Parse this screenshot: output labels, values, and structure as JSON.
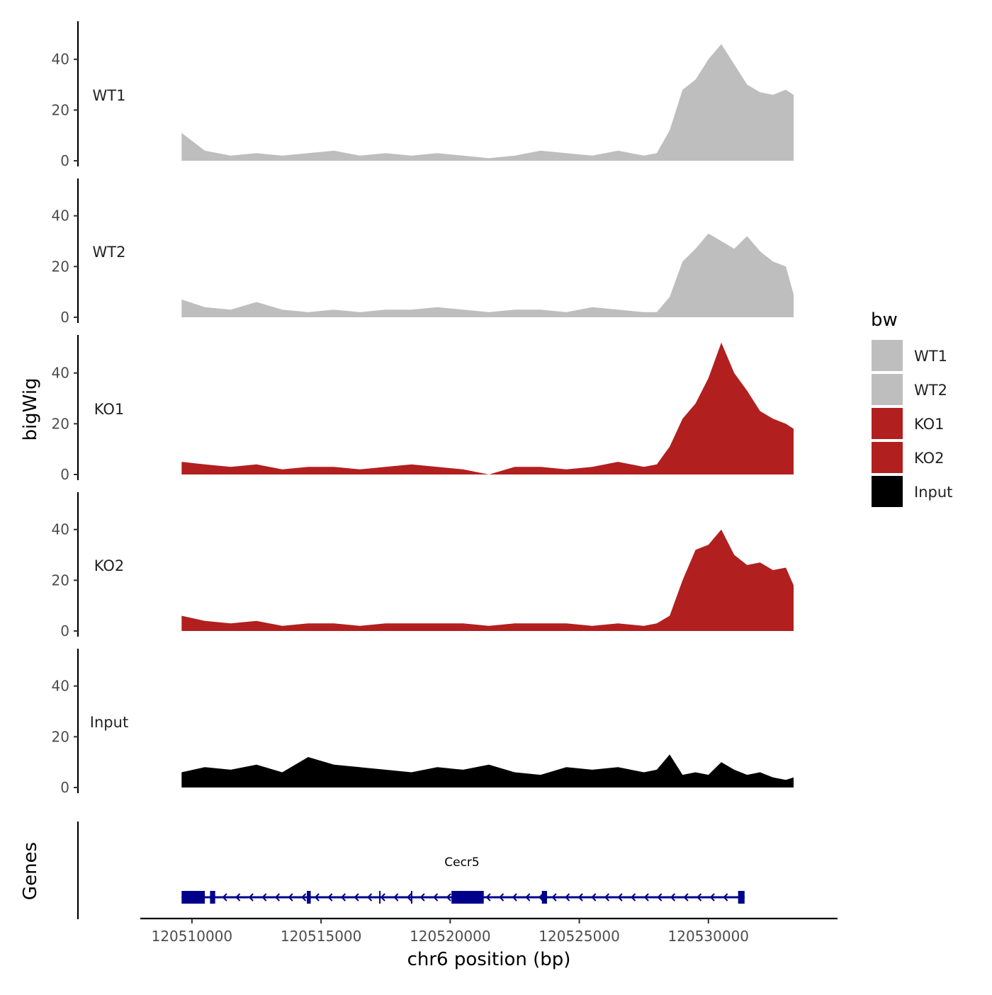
{
  "chart_data": {
    "type": "area",
    "chromosome": "chr6",
    "xlabel": "chr6 position (bp)",
    "ylabel": "bigWig",
    "genes_label": "Genes",
    "xlim": [
      120508000,
      120535000
    ],
    "xticks": [
      120510000,
      120515000,
      120520000,
      120525000,
      120530000
    ],
    "xtick_labels": [
      "120510000",
      "120515000",
      "120520000",
      "120525000",
      "120530000"
    ],
    "ylim": [
      0,
      55
    ],
    "yticks": [
      0,
      20,
      40
    ],
    "ytick_labels": [
      "0",
      "20",
      "40"
    ],
    "grid": false,
    "legend": {
      "title": "bw",
      "placement": "right",
      "entries": [
        {
          "label": "WT1",
          "color": "#bebebe"
        },
        {
          "label": "WT2",
          "color": "#bebebe"
        },
        {
          "label": "KO1",
          "color": "#b21f1f"
        },
        {
          "label": "KO2",
          "color": "#b21f1f"
        },
        {
          "label": "Input",
          "color": "#000000"
        }
      ]
    },
    "x_positions": [
      120509600,
      120510500,
      120511500,
      120512500,
      120513500,
      120514500,
      120515500,
      120516500,
      120517500,
      120518500,
      120519500,
      120520500,
      120521500,
      120522500,
      120523500,
      120524500,
      120525500,
      120526500,
      120527500,
      120528000,
      120528500,
      120529000,
      120529500,
      120530000,
      120530500,
      120531000,
      120531500,
      120532000,
      120532500,
      120533000,
      120533300
    ],
    "series": [
      {
        "name": "WT1",
        "color": "#bebebe",
        "values": [
          11,
          4,
          2,
          3,
          2,
          3,
          4,
          2,
          3,
          2,
          3,
          2,
          1,
          2,
          4,
          3,
          2,
          4,
          2,
          3,
          12,
          28,
          32,
          40,
          46,
          38,
          30,
          27,
          26,
          28,
          26
        ]
      },
      {
        "name": "WT2",
        "color": "#bebebe",
        "values": [
          7,
          4,
          3,
          6,
          3,
          2,
          3,
          2,
          3,
          3,
          4,
          3,
          2,
          3,
          3,
          2,
          4,
          3,
          2,
          2,
          8,
          22,
          27,
          33,
          30,
          27,
          32,
          26,
          22,
          20,
          9
        ]
      },
      {
        "name": "KO1",
        "color": "#b21f1f",
        "values": [
          5,
          4,
          3,
          4,
          2,
          3,
          3,
          2,
          3,
          4,
          3,
          2,
          0,
          3,
          3,
          2,
          3,
          5,
          3,
          4,
          11,
          22,
          28,
          38,
          52,
          40,
          33,
          25,
          22,
          20,
          18
        ]
      },
      {
        "name": "KO2",
        "color": "#b21f1f",
        "values": [
          6,
          4,
          3,
          4,
          2,
          3,
          3,
          2,
          3,
          3,
          3,
          3,
          2,
          3,
          3,
          3,
          2,
          3,
          2,
          3,
          6,
          20,
          32,
          34,
          40,
          30,
          26,
          27,
          24,
          25,
          18
        ]
      },
      {
        "name": "Input",
        "color": "#000000",
        "values": [
          6,
          8,
          7,
          9,
          6,
          12,
          9,
          8,
          7,
          6,
          8,
          7,
          9,
          6,
          5,
          8,
          7,
          8,
          6,
          7,
          13,
          5,
          6,
          5,
          10,
          7,
          5,
          6,
          4,
          3,
          4
        ]
      }
    ],
    "genes": [
      {
        "name": "Cecr5",
        "start": 120509600,
        "end": 120531400,
        "strand": "-",
        "exons": [
          [
            120509600,
            120510500
          ],
          [
            120510700,
            120510900
          ],
          [
            120514450,
            120514600
          ],
          [
            120517250,
            120517300
          ],
          [
            120518480,
            120518530
          ],
          [
            120520050,
            120521300
          ],
          [
            120523550,
            120523750
          ],
          [
            120531150,
            120531400
          ]
        ]
      }
    ]
  }
}
